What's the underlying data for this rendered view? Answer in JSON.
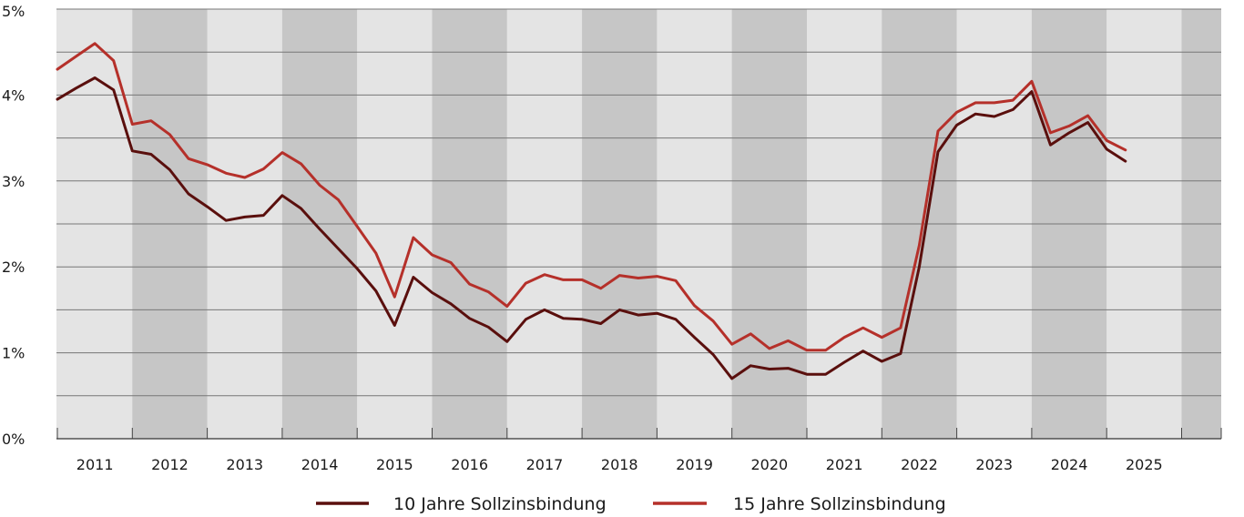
{
  "chart_data": {
    "type": "line",
    "title": "",
    "xlabel": "",
    "ylabel": "",
    "ylim": [
      0,
      5
    ],
    "xlim": [
      2010.5,
      2025.5
    ],
    "grid": true,
    "y_ticks": [
      "0%",
      "1%",
      "2%",
      "3%",
      "4%",
      "5%"
    ],
    "x_ticks": [
      "2011",
      "2012",
      "2013",
      "2014",
      "2015",
      "2016",
      "2017",
      "2018",
      "2019",
      "2020",
      "2021",
      "2022",
      "2023",
      "2024",
      "2025"
    ],
    "legend_position": "bottom-center",
    "series": [
      {
        "name": "10 Jahre Sollzinsbindung",
        "color": "#5a0f0d",
        "x": [
          2010.5,
          2010.75,
          2011.0,
          2011.25,
          2011.5,
          2011.75,
          2012.0,
          2012.25,
          2012.5,
          2012.75,
          2013.0,
          2013.25,
          2013.5,
          2013.75,
          2014.0,
          2014.25,
          2014.5,
          2014.75,
          2015.0,
          2015.25,
          2015.5,
          2015.75,
          2016.0,
          2016.25,
          2016.5,
          2016.75,
          2017.0,
          2017.25,
          2017.5,
          2017.75,
          2018.0,
          2018.25,
          2018.5,
          2018.75,
          2019.0,
          2019.25,
          2019.5,
          2019.75,
          2020.0,
          2020.25,
          2020.5,
          2020.75,
          2021.0,
          2021.25,
          2021.5,
          2021.75,
          2022.0,
          2022.25,
          2022.5,
          2022.75,
          2023.0,
          2023.25,
          2023.5,
          2023.75,
          2024.0,
          2024.25,
          2024.5,
          2024.75
        ],
        "values": [
          3.95,
          4.08,
          4.2,
          4.06,
          3.35,
          3.31,
          3.13,
          2.85,
          2.7,
          2.54,
          2.58,
          2.6,
          2.83,
          2.68,
          2.44,
          2.21,
          1.98,
          1.72,
          1.32,
          1.88,
          1.7,
          1.57,
          1.4,
          1.3,
          1.13,
          1.39,
          1.5,
          1.4,
          1.39,
          1.34,
          1.5,
          1.44,
          1.46,
          1.39,
          1.18,
          0.98,
          0.7,
          0.85,
          0.81,
          0.82,
          0.75,
          0.75,
          0.89,
          1.02,
          0.9,
          0.99,
          2.0,
          3.34,
          3.65,
          3.78,
          3.75,
          3.83,
          4.04,
          3.42,
          3.56,
          3.68,
          3.37,
          3.23
        ]
      },
      {
        "name": "15 Jahre Sollzinsbindung",
        "color": "#b5302a",
        "x": [
          2010.5,
          2010.75,
          2011.0,
          2011.25,
          2011.5,
          2011.75,
          2012.0,
          2012.25,
          2012.5,
          2012.75,
          2013.0,
          2013.25,
          2013.5,
          2013.75,
          2014.0,
          2014.25,
          2014.5,
          2014.75,
          2015.0,
          2015.25,
          2015.5,
          2015.75,
          2016.0,
          2016.25,
          2016.5,
          2016.75,
          2017.0,
          2017.25,
          2017.5,
          2017.75,
          2018.0,
          2018.25,
          2018.5,
          2018.75,
          2019.0,
          2019.25,
          2019.5,
          2019.75,
          2020.0,
          2020.25,
          2020.5,
          2020.75,
          2021.0,
          2021.25,
          2021.5,
          2021.75,
          2022.0,
          2022.25,
          2022.5,
          2022.75,
          2023.0,
          2023.25,
          2023.5,
          2023.75,
          2024.0,
          2024.25,
          2024.5,
          2024.75
        ],
        "values": [
          4.3,
          4.45,
          4.6,
          4.4,
          3.66,
          3.7,
          3.54,
          3.26,
          3.19,
          3.09,
          3.04,
          3.14,
          3.33,
          3.2,
          2.95,
          2.78,
          2.47,
          2.16,
          1.65,
          2.34,
          2.14,
          2.05,
          1.8,
          1.71,
          1.54,
          1.81,
          1.91,
          1.85,
          1.85,
          1.75,
          1.9,
          1.87,
          1.89,
          1.84,
          1.55,
          1.37,
          1.1,
          1.22,
          1.05,
          1.14,
          1.03,
          1.03,
          1.18,
          1.29,
          1.18,
          1.29,
          2.25,
          3.58,
          3.8,
          3.91,
          3.91,
          3.94,
          4.16,
          3.56,
          3.64,
          3.76,
          3.47,
          3.36
        ]
      }
    ]
  }
}
